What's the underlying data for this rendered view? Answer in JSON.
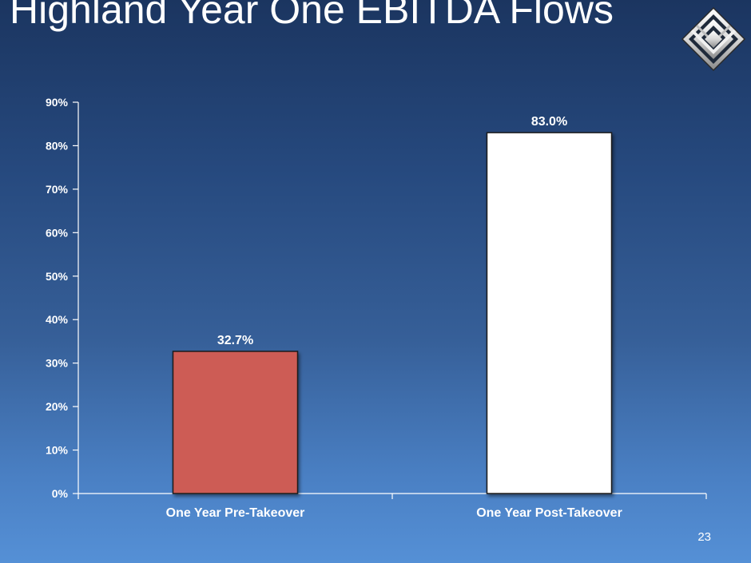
{
  "slide": {
    "title": "Highland Year One EBITDA Flows",
    "page_number": "23",
    "logo_icon": "diamond-chevron-logo-icon"
  },
  "colors": {
    "bar_pre": "#cd5b55",
    "bar_post": "#ffffff",
    "axis": "#ffffff"
  },
  "chart_data": {
    "type": "bar",
    "title": "Highland Year One EBITDA Flows",
    "xlabel": "",
    "ylabel": "",
    "categories": [
      "One Year Pre-Takeover",
      "One Year Post-Takeover"
    ],
    "values": [
      32.7,
      83.0
    ],
    "value_labels": [
      "32.7%",
      "83.0%"
    ],
    "ylim": [
      0,
      90
    ],
    "y_ticks": [
      0,
      10,
      20,
      30,
      40,
      50,
      60,
      70,
      80,
      90
    ],
    "y_tick_labels": [
      "0%",
      "10%",
      "20%",
      "30%",
      "40%",
      "50%",
      "60%",
      "70%",
      "80%",
      "90%"
    ],
    "grid": false,
    "legend": "none"
  }
}
